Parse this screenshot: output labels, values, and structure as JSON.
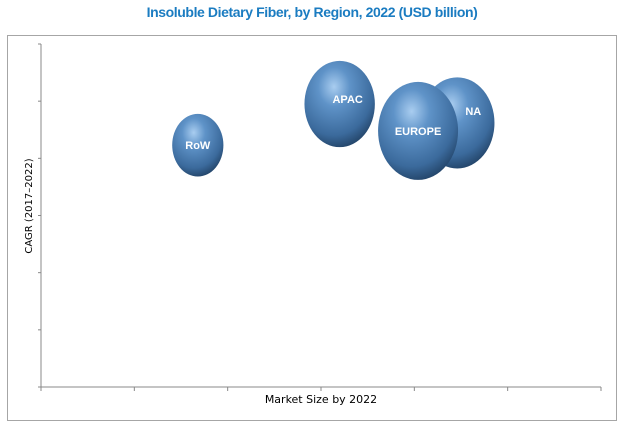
{
  "chart_data": {
    "type": "bubble",
    "title": "Insoluble Dietary Fiber, by Region, 2022 (USD billion)",
    "xlabel": "Market Size by 2022",
    "ylabel": "CAGR (2017–2022)",
    "xlim": [
      0,
      6
    ],
    "ylim": [
      0,
      6
    ],
    "tick_labels_shown": false,
    "grid": false,
    "bubble_color": "#4a7fb5",
    "label_color": "#ffffff",
    "points": [
      {
        "label": "RoW",
        "x": 1.68,
        "y": 4.23,
        "size": 0.64
      },
      {
        "label": "APAC",
        "x": 3.2,
        "y": 4.95,
        "size": 0.88
      },
      {
        "label": "NA",
        "x": 4.46,
        "y": 4.62,
        "size": 0.93
      },
      {
        "label": "EUROPE",
        "x": 4.04,
        "y": 4.48,
        "size": 1.0
      }
    ]
  }
}
